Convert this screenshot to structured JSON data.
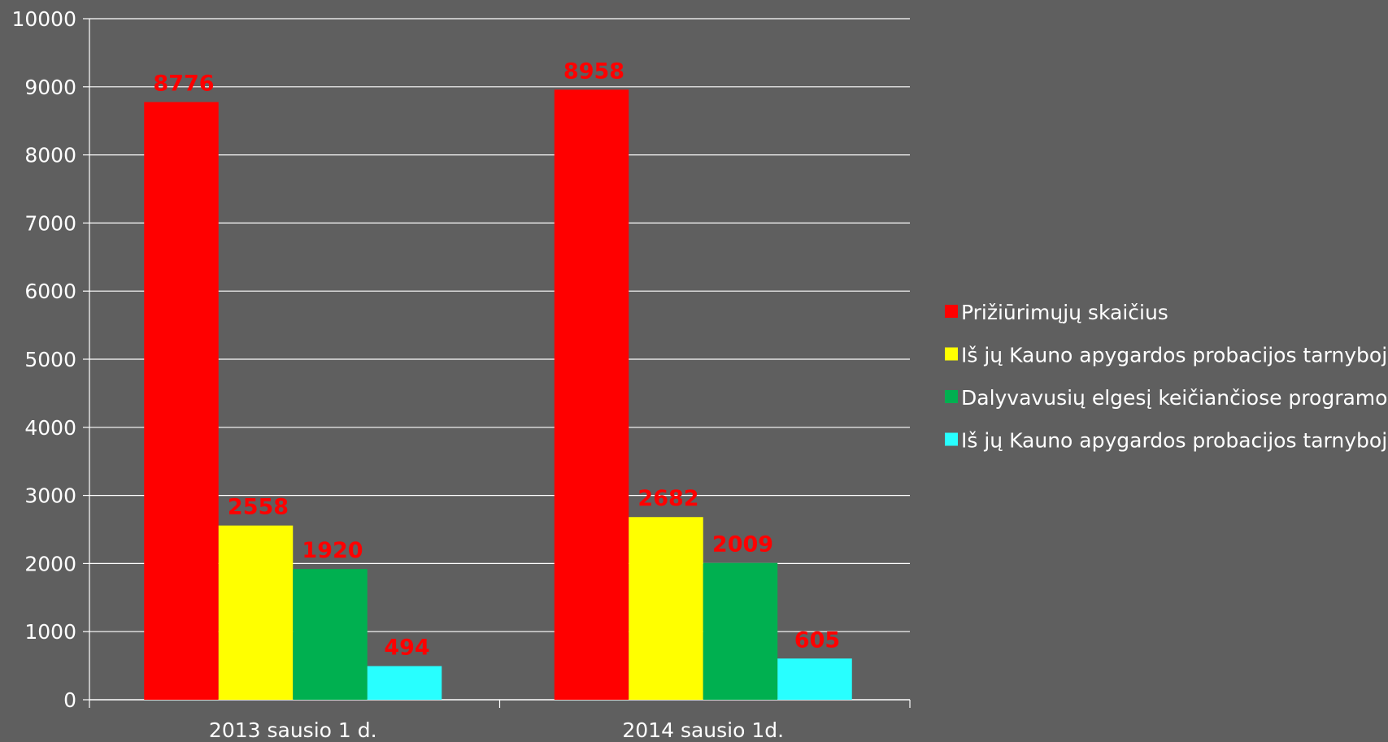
{
  "chart_data": {
    "type": "bar",
    "categories": [
      "2013 sausio 1 d.",
      "2014 sausio 1d."
    ],
    "series": [
      {
        "name": "Prižiūrimųjų skaičius",
        "values": [
          8776,
          8958
        ],
        "color": "#ff0000"
      },
      {
        "name": "Iš jų Kauno apygardos probacijos tarnyboje",
        "values": [
          2558,
          2682
        ],
        "color": "#ffff00"
      },
      {
        "name": "Dalyvavusių elgesį keičiančiose programose",
        "values": [
          1920,
          2009
        ],
        "color": "#00b050"
      },
      {
        "name": "Iš jų Kauno apygardos probacijos tarnyboje",
        "values": [
          494,
          605
        ],
        "color": "#28ffff"
      }
    ],
    "ylim": [
      0,
      10000
    ],
    "yticks": [
      0,
      1000,
      2000,
      3000,
      4000,
      5000,
      6000,
      7000,
      8000,
      9000,
      10000
    ],
    "grid": true,
    "legend_position": "right",
    "data_label_color": "#ff0000",
    "background_color": "#5f5f5f",
    "gridline_color": "#ffffff"
  }
}
